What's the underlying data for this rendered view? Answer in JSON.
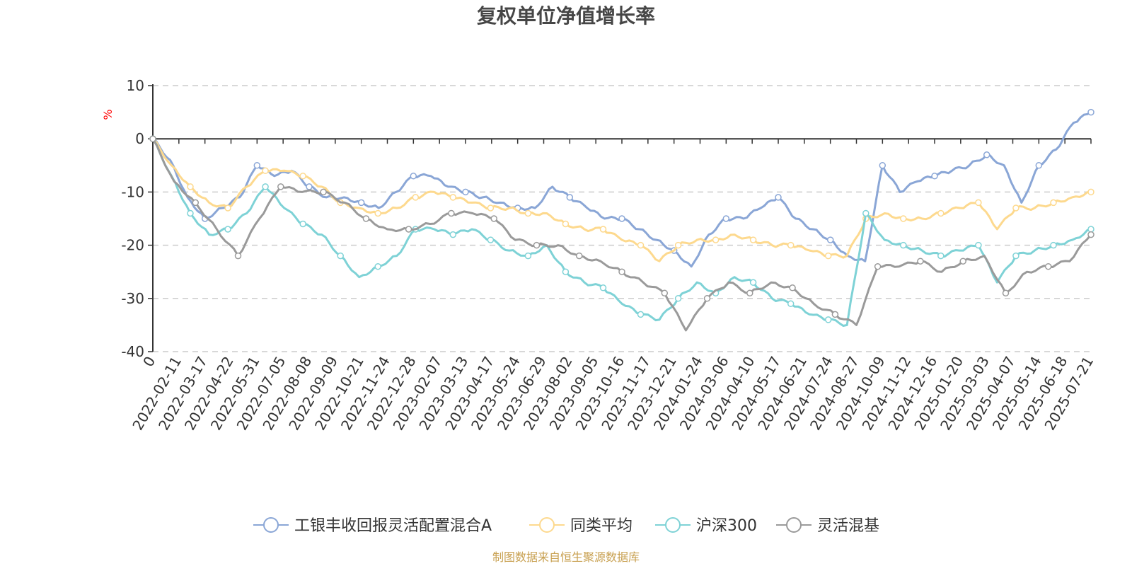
{
  "chart_data": {
    "type": "line",
    "title": "复权单位净值增长率",
    "ylabel": "%",
    "ylim": [
      -40,
      10
    ],
    "yticks": [
      10,
      0,
      -10,
      -20,
      -30,
      -40
    ],
    "grid": true,
    "legend_position": "bottom-center",
    "x_labels": [
      "0",
      "2022-02-11",
      "2022-03-17",
      "2022-04-22",
      "2022-05-31",
      "2022-07-05",
      "2022-08-08",
      "2022-09-09",
      "2022-10-21",
      "2022-11-24",
      "2022-12-28",
      "2023-02-07",
      "2023-03-13",
      "2023-04-17",
      "2023-05-24",
      "2023-06-29",
      "2023-08-02",
      "2023-09-05",
      "2023-10-16",
      "2023-11-17",
      "2023-12-21",
      "2024-01-24",
      "2024-03-06",
      "2024-04-10",
      "2024-05-17",
      "2024-06-21",
      "2024-07-24",
      "2024-08-27",
      "2024-10-09",
      "2024-11-12",
      "2024-12-16",
      "2025-01-20",
      "2025-03-03",
      "2025-04-07",
      "2025-05-14",
      "2025-06-18",
      "2025-07-21"
    ],
    "series": [
      {
        "name": "工银丰收回报灵活配置混合A",
        "color": "#8aa6d6",
        "values": [
          0,
          -4,
          -11,
          -15,
          -13,
          -11,
          -5,
          -7,
          -6,
          -9,
          -11,
          -11,
          -12,
          -13,
          -10,
          -7,
          -7,
          -9,
          -10,
          -11,
          -12,
          -13,
          -13,
          -9,
          -11,
          -13,
          -15,
          -15,
          -17,
          -19,
          -21,
          -24,
          -18,
          -15,
          -15,
          -13,
          -11,
          -15,
          -17,
          -19,
          -22,
          -23,
          -5,
          -10,
          -8,
          -7,
          -6,
          -5,
          -3,
          -5,
          -12,
          -5,
          -2,
          3,
          5
        ]
      },
      {
        "name": "同类平均",
        "color": "#fdd98e",
        "values": [
          0,
          -5,
          -9,
          -12,
          -13,
          -9,
          -6,
          -6,
          -7,
          -9,
          -12,
          -13,
          -14,
          -13,
          -11,
          -10,
          -11,
          -12,
          -13,
          -13,
          -14,
          -14,
          -16,
          -17,
          -17,
          -19,
          -20,
          -23,
          -20,
          -19,
          -19,
          -18,
          -19,
          -20,
          -20,
          -21,
          -22,
          -22,
          -15,
          -14,
          -15,
          -15,
          -14,
          -13,
          -12,
          -17,
          -13,
          -13,
          -12,
          -11,
          -10
        ]
      },
      {
        "name": "沪深300",
        "color": "#7ed2d6",
        "values": [
          0,
          -7,
          -14,
          -18,
          -17,
          -14,
          -9,
          -13,
          -16,
          -18,
          -22,
          -26,
          -24,
          -22,
          -17,
          -17,
          -18,
          -17,
          -19,
          -21,
          -22,
          -20,
          -25,
          -27,
          -28,
          -31,
          -33,
          -34,
          -30,
          -27,
          -29,
          -26,
          -27,
          -30,
          -31,
          -33,
          -34,
          -35,
          -14,
          -19,
          -20,
          -21,
          -22,
          -21,
          -20,
          -27,
          -22,
          -21,
          -20,
          -19,
          -17
        ]
      },
      {
        "name": "灵活混基",
        "color": "#9a9a9a",
        "values": [
          0,
          -8,
          -12,
          -17,
          -22,
          -15,
          -9,
          -10,
          -10,
          -12,
          -15,
          -17,
          -17,
          -16,
          -14,
          -14,
          -15,
          -19,
          -20,
          -20,
          -22,
          -23,
          -25,
          -27,
          -29,
          -36,
          -30,
          -27,
          -29,
          -27,
          -28,
          -31,
          -33,
          -35,
          -24,
          -24,
          -23,
          -25,
          -23,
          -22,
          -29,
          -25,
          -24,
          -23,
          -18
        ]
      }
    ]
  },
  "source_text": "制图数据来自恒生聚源数据库",
  "colors": {
    "unit": "#ff0000",
    "source": "#c8a050",
    "grid": "#cccccc",
    "axis": "#333333"
  }
}
